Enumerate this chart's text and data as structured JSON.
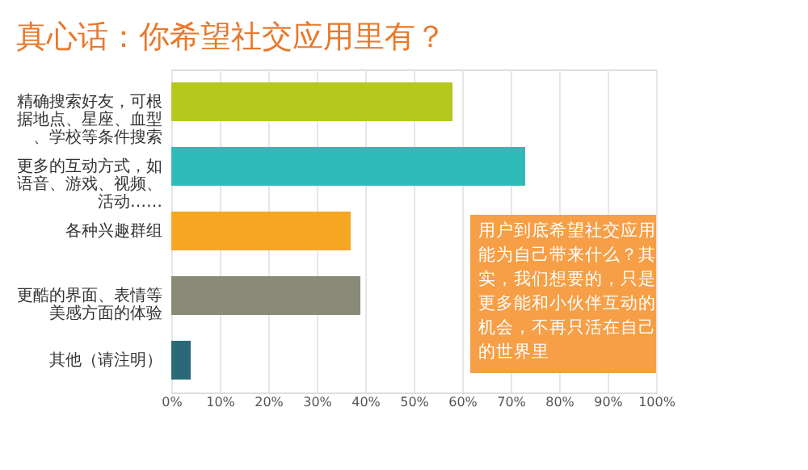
{
  "chart_data": {
    "type": "bar",
    "orientation": "horizontal",
    "title": "真心话：你希望社交应用里有？",
    "categories": [
      "精确搜索好友，可根据地点、星座、血型、学校等条件搜索",
      "更多的互动方式，如语音、游戏、视频、活动……",
      "各种兴趣群组",
      "更酷的界面、表情等美感方面的体验",
      "其他（请注明）"
    ],
    "values": [
      58,
      73,
      37,
      39,
      4
    ],
    "colors": [
      "#b5c81e",
      "#2fbcb8",
      "#f5a623",
      "#8a8a78",
      "#2a6a78"
    ],
    "xlim": [
      0,
      100
    ],
    "xticks": [
      {
        "value": 0,
        "label": "0%"
      },
      {
        "value": 10,
        "label": "10%"
      },
      {
        "value": 20,
        "label": "20%"
      },
      {
        "value": 30,
        "label": "30%"
      },
      {
        "value": 40,
        "label": "40%"
      },
      {
        "value": 50,
        "label": "50%"
      },
      {
        "value": 60,
        "label": "60%"
      },
      {
        "value": 70,
        "label": "70%"
      },
      {
        "value": 80,
        "label": "80%"
      },
      {
        "value": 90,
        "label": "90%"
      },
      {
        "value": 100,
        "label": "100%"
      }
    ],
    "grid": "x",
    "annotations": [
      "用户到底希望社交应用能为自己带来什么？其实，我们想要的，只是更多能和小伙伴互动的机会，不再只活在自己的世界里"
    ]
  }
}
